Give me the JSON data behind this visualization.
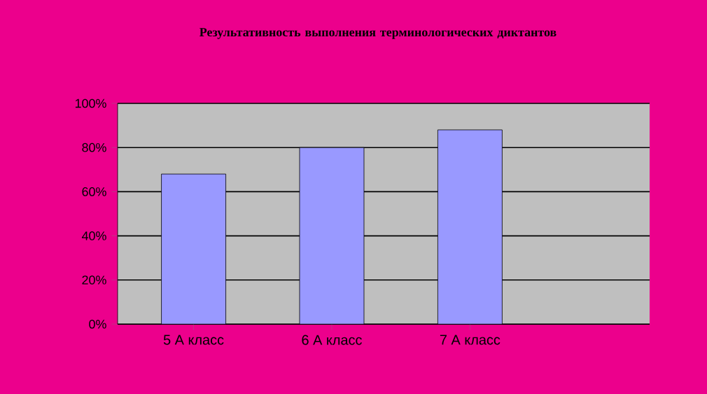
{
  "chart_data": {
    "type": "bar",
    "title": "Результативность выполнения терминологических диктантов",
    "categories": [
      "5 А класс",
      "6 А класс",
      "7 А класс"
    ],
    "values": [
      68,
      80,
      88
    ],
    "color": "#9999ff",
    "ylim": [
      0,
      100
    ],
    "yticks": [
      {
        "value": 0,
        "label": "0%"
      },
      {
        "value": 20,
        "label": "20%"
      },
      {
        "value": 40,
        "label": "40%"
      },
      {
        "value": 60,
        "label": "60%"
      },
      {
        "value": 80,
        "label": "80%"
      },
      {
        "value": 100,
        "label": "100%"
      }
    ],
    "grid": "y"
  }
}
